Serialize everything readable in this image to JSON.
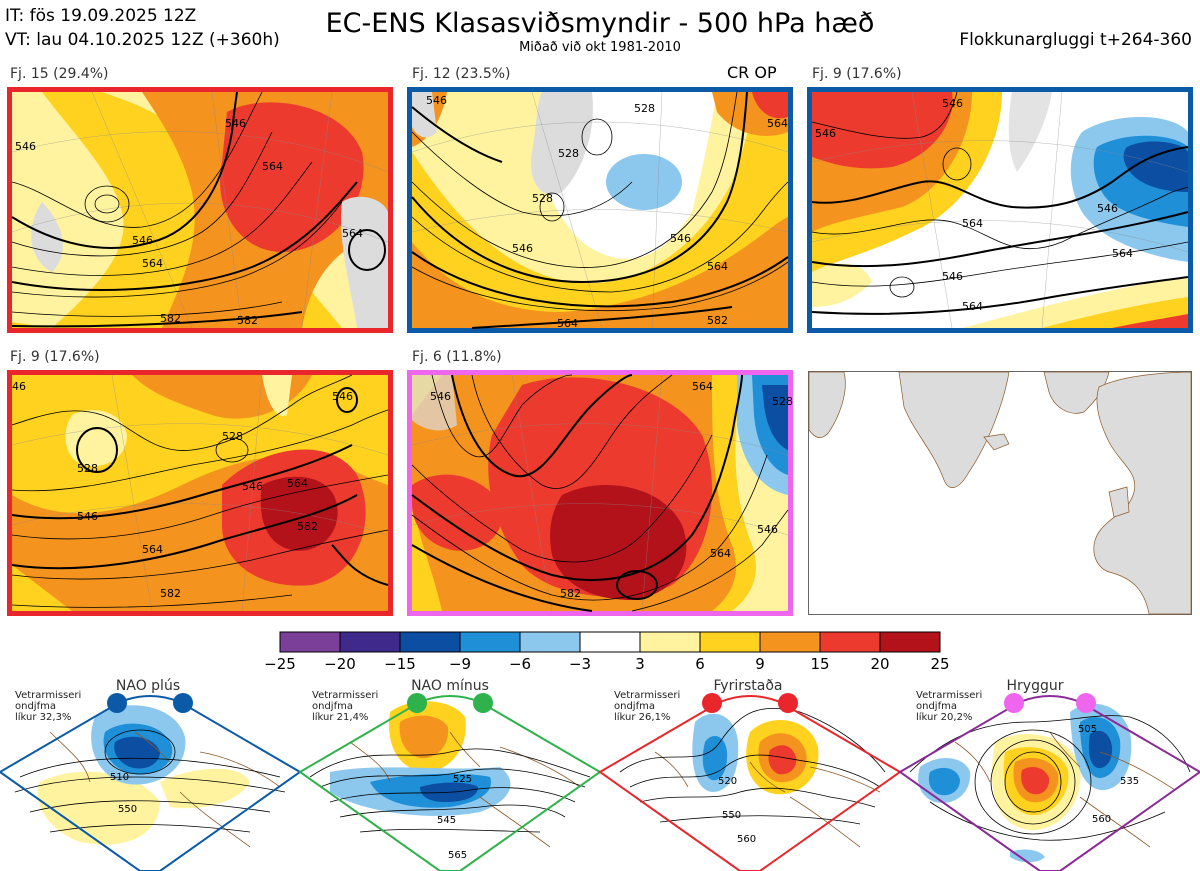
{
  "header": {
    "init_line": "IT: fös 19.09.2025 12Z",
    "valid_line": "VT: lau 04.10.2025 12Z  (+360h)",
    "title": "EC-ENS Klasasviðsmyndir - 500 hPa hæð",
    "subtitle": "Miðað við okt 1981-2010",
    "window": "Flokkunargluggi t+264-360"
  },
  "colors": {
    "red": "#e8262b",
    "blue": "#0a5aa8",
    "magenta": "#ee66ee",
    "green": "#2fb24c",
    "purple": "#8a2a96",
    "land": "#dcdcdc",
    "coast": "#8b5a2b"
  },
  "panels": [
    {
      "label": "Fj. 15 (29.4%)",
      "tag": "",
      "border": "#e8262b",
      "contours": [
        "546",
        "564",
        "546",
        "564",
        "564",
        "582",
        "582"
      ]
    },
    {
      "label": "Fj. 12 (23.5%)",
      "tag": "CR OP",
      "border": "#0a5aa8",
      "contours": [
        "546",
        "528",
        "564",
        "528",
        "528",
        "546",
        "546",
        "564",
        "564",
        "582"
      ]
    },
    {
      "label": "Fj. 9 (17.6%)",
      "tag": "",
      "border": "#0a5aa8",
      "contours": [
        "546",
        "546",
        "564",
        "546",
        "564",
        "546",
        "564"
      ]
    },
    {
      "label": "Fj. 9 (17.6%)",
      "tag": "",
      "border": "#e8262b",
      "contours": [
        "46",
        "546",
        "528",
        "528",
        "546",
        "564",
        "546",
        "564",
        "582",
        "582"
      ]
    },
    {
      "label": "Fj. 6 (11.8%)",
      "tag": "",
      "border": "#ee66ee",
      "contours": [
        "546",
        "564",
        "528",
        "546",
        "564",
        "582"
      ]
    }
  ],
  "chart_data": {
    "type": "heatmap",
    "title": "EC-ENS Klasasviðsmyndir - 500 hPa hæð",
    "colorbar": {
      "ticks": [
        "−25",
        "−20",
        "−15",
        "−9",
        "−6",
        "−3",
        "3",
        "6",
        "9",
        "15",
        "20",
        "25"
      ],
      "colors": [
        "#7b3f9a",
        "#3f2a8c",
        "#0b4ea2",
        "#1f8fd8",
        "#8cc8ee",
        "#ffffff",
        "#fff3a0",
        "#ffd21f",
        "#f5931f",
        "#ec3b2e",
        "#b3121a"
      ]
    },
    "clusters": [
      {
        "name": "Fj. 15",
        "members": 15,
        "percent": 29.4
      },
      {
        "name": "Fj. 12",
        "members": 12,
        "percent": 23.5
      },
      {
        "name": "Fj. 9",
        "members": 9,
        "percent": 17.6
      },
      {
        "name": "Fj. 9",
        "members": 9,
        "percent": 17.6
      },
      {
        "name": "Fj. 6",
        "members": 6,
        "percent": 11.8
      }
    ]
  },
  "regimes": [
    {
      "name": "NAO plús",
      "note": [
        "Vetrarmisseri",
        "ondjfma",
        "líkur 32,3%"
      ],
      "color": "#0a5aa8",
      "labels": [
        "510",
        "550"
      ]
    },
    {
      "name": "NAO mínus",
      "note": [
        "Vetrarmisseri",
        "ondjfma",
        "líkur 21,4%"
      ],
      "color": "#2fb24c",
      "labels": [
        "525",
        "545",
        "565"
      ]
    },
    {
      "name": "Fyrirstaða",
      "note": [
        "Vetrarmisseri",
        "ondjfma",
        "líkur 26,1%"
      ],
      "color": "#e8262b",
      "labels": [
        "520",
        "550",
        "560"
      ]
    },
    {
      "name": "Hryggur",
      "note": [
        "Vetrarmisseri",
        "ondjfma",
        "líkur 20,2%"
      ],
      "color": "#8a2a96",
      "labels": [
        "505",
        "535",
        "560"
      ]
    }
  ]
}
